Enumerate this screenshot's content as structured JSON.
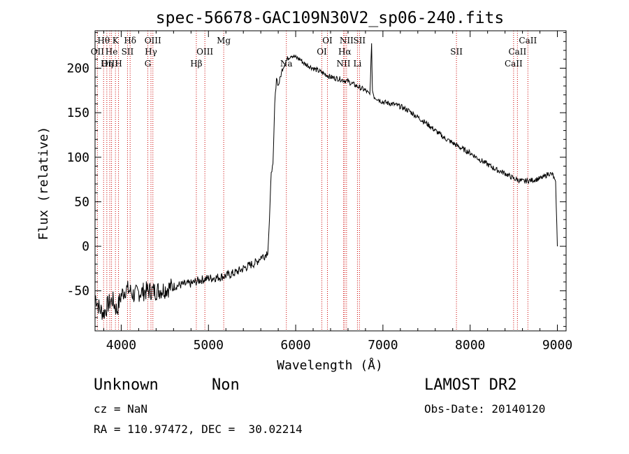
{
  "chart_data": {
    "type": "line",
    "title": "spec-56678-GAC109N30V2_sp06-240.fits",
    "xlabel": "Wavelength (Å)",
    "ylabel": "Flux (relative)",
    "xlim": [
      3700,
      9100
    ],
    "ylim": [
      -95,
      242
    ],
    "xticks": [
      4000,
      5000,
      6000,
      7000,
      8000,
      9000
    ],
    "yticks": [
      -50,
      0,
      50,
      100,
      150,
      200
    ],
    "grid": false,
    "series": [
      {
        "color": "#000000",
        "x": [
          3700,
          3750,
          3800,
          3850,
          3900,
          3950,
          4000,
          4050,
          4100,
          4150,
          4200,
          4300,
          4400,
          4500,
          4600,
          4700,
          4800,
          4900,
          5000,
          5100,
          5200,
          5300,
          5400,
          5500,
          5550,
          5600,
          5650,
          5680,
          5700,
          5720,
          5740,
          5760,
          5780,
          5800,
          5850,
          5900,
          5950,
          6000,
          6050,
          6100,
          6200,
          6300,
          6400,
          6500,
          6600,
          6700,
          6800,
          6850,
          6870,
          6880,
          6900,
          7000,
          7100,
          7200,
          7300,
          7400,
          7500,
          7600,
          7700,
          7800,
          7900,
          8000,
          8100,
          8200,
          8300,
          8400,
          8500,
          8600,
          8700,
          8800,
          8850,
          8900,
          8950,
          8980,
          9000
        ],
        "y": [
          -55,
          -70,
          -75,
          -65,
          -60,
          -72,
          -55,
          -48,
          -50,
          -55,
          -52,
          -50,
          -50,
          -48,
          -45,
          -43,
          -42,
          -38,
          -36,
          -35,
          -33,
          -30,
          -25,
          -20,
          -18,
          -12,
          -10,
          -5,
          30,
          85,
          90,
          160,
          190,
          180,
          200,
          210,
          215,
          212,
          210,
          205,
          200,
          195,
          190,
          188,
          185,
          180,
          175,
          170,
          225,
          175,
          168,
          162,
          160,
          157,
          152,
          145,
          138,
          130,
          122,
          116,
          110,
          105,
          98,
          92,
          86,
          82,
          76,
          73,
          74,
          76,
          78,
          82,
          80,
          70,
          0
        ]
      }
    ],
    "lines": [
      {
        "label": "Hθ",
        "x": 3798,
        "row": 0
      },
      {
        "label": "K",
        "x": 3934,
        "row": 0
      },
      {
        "label": "Hδ",
        "x": 4102,
        "row": 0
      },
      {
        "label": "OIII",
        "x": 4363,
        "row": 0
      },
      {
        "label": "Mg",
        "x": 5175,
        "row": 0
      },
      {
        "label": "OI",
        "x": 6364,
        "row": 0
      },
      {
        "label": "NII",
        "x": 6583,
        "row": 0
      },
      {
        "label": "SII",
        "x": 6731,
        "row": 0
      },
      {
        "label": "CaII",
        "x": 8662,
        "row": 0
      },
      {
        "label": "OII",
        "x": 3727,
        "row": 1
      },
      {
        "label": "He",
        "x": 3889,
        "row": 1
      },
      {
        "label": "SII",
        "x": 4072,
        "row": 1
      },
      {
        "label": "Hγ",
        "x": 4341,
        "row": 1
      },
      {
        "label": "OIII",
        "x": 4959,
        "row": 1
      },
      {
        "label": "OI",
        "x": 6300,
        "row": 1
      },
      {
        "label": "Hα",
        "x": 6563,
        "row": 1
      },
      {
        "label": "SII",
        "x": 7843,
        "row": 1
      },
      {
        "label": "CaII",
        "x": 8542,
        "row": 1
      },
      {
        "label": "OIII",
        "x": 3869,
        "row": 2
      },
      {
        "label": "Hη",
        "x": 3835,
        "row": 2
      },
      {
        "label": "H",
        "x": 3969,
        "row": 2
      },
      {
        "label": "G",
        "x": 4305,
        "row": 2
      },
      {
        "label": "Hβ",
        "x": 4861,
        "row": 2
      },
      {
        "label": "Na",
        "x": 5893,
        "row": 2
      },
      {
        "label": "NII",
        "x": 6548,
        "row": 2
      },
      {
        "label": "Li",
        "x": 6708,
        "row": 2
      },
      {
        "label": "CaII",
        "x": 8498,
        "row": 2
      }
    ],
    "line_color": "#cc0000"
  },
  "footer": {
    "object_class": "Unknown",
    "subclass": "Non",
    "survey": "LAMOST DR2",
    "cz": "cz = NaN",
    "obs_date": "Obs-Date: 20140120",
    "coords": "RA = 110.97472, DEC =  30.02214"
  }
}
